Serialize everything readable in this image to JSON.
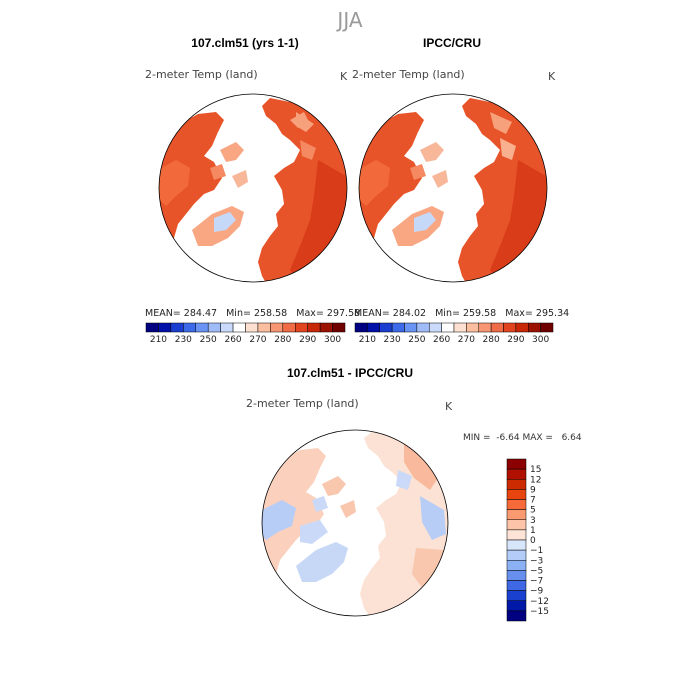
{
  "season": "JJA",
  "top_left": {
    "title": "107.clm51 (yrs 1-1)",
    "subtitle": "2-meter Temp (land)",
    "units": "K",
    "mean_label": "MEAN=",
    "mean": "284.47",
    "min_label": "Min=",
    "min": "258.58",
    "max_label": "Max=",
    "max": "297.58"
  },
  "top_right": {
    "title": "IPCC/CRU",
    "subtitle": "2-meter Temp (land)",
    "units": "K",
    "mean_label": "MEAN=",
    "mean": "284.02",
    "min_label": "Min=",
    "min": "259.58",
    "max_label": "Max=",
    "max": "295.34"
  },
  "abs_colorbar": {
    "labels": [
      "210",
      "230",
      "250",
      "260",
      "270",
      "280",
      "290",
      "300"
    ],
    "colors": [
      "#000080",
      "#0010a8",
      "#1a3fd0",
      "#3d6ae8",
      "#6a94f4",
      "#9fbcf8",
      "#c9dafb",
      "#ffffff",
      "#fde0cf",
      "#fbbf9f",
      "#f79672",
      "#f06c47",
      "#e34420",
      "#c92808",
      "#9c1200",
      "#6e0000"
    ]
  },
  "diff": {
    "title": "107.clm51 - IPCC/CRU",
    "subtitle": "2-meter Temp (land)",
    "units": "K",
    "min_label": "MIN =",
    "min": "-6.64",
    "max_label": "MAX =",
    "max": "6.64"
  },
  "diff_colorbar": {
    "labels": [
      "15",
      "12",
      "9",
      "7",
      "5",
      "3",
      "1",
      "0",
      "−1",
      "−3",
      "−5",
      "−7",
      "−9",
      "−12",
      "−15"
    ],
    "colors": [
      "#8b0000",
      "#b01000",
      "#cc2a00",
      "#e84410",
      "#f56a38",
      "#f99a70",
      "#fcc4a8",
      "#fde4d6",
      "#d8e6fb",
      "#b3cdf8",
      "#8cb0f4",
      "#6790ee",
      "#3f68e4",
      "#1a40d0",
      "#0018a8",
      "#000080"
    ]
  },
  "map_colors": {
    "warm_dark": "#e0451f",
    "warm_mid": "#f26a3b",
    "warm_light": "#f9a683",
    "cool_light": "#c5d8f7",
    "diff_warm": "#f9c6ae",
    "diff_cool": "#b7cdf6",
    "diff_neutral": "#fde6da"
  }
}
